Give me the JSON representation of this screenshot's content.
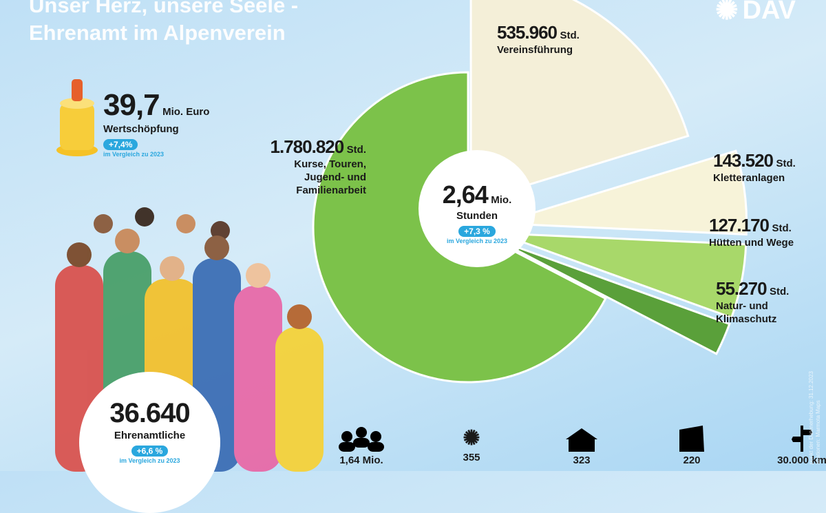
{
  "header": {
    "title_line1": "Unser Herz, unsere Seele -",
    "title_line2": "Ehrenamt im Alpenverein",
    "logo": "DAV"
  },
  "value_creation": {
    "value": "39,7",
    "unit": "Mio. Euro",
    "label": "Wertschöpfung",
    "change": "+7,4%",
    "compare": "im Vergleich zu 2023"
  },
  "volunteers": {
    "value": "36.640",
    "label": "Ehrenamtliche",
    "change": "+6,6 %",
    "compare": "im Vergleich zu 2023"
  },
  "total_hours": {
    "value": "2,64",
    "unit": "Mio.",
    "label": "Stunden",
    "change": "+7,3 %",
    "compare": "im Vergleich zu 2023"
  },
  "chart_data": {
    "type": "pie",
    "slices": [
      {
        "value": 535960,
        "value_label": "535.960",
        "unit": "Std.",
        "label": "Vereinsführung",
        "color": "#f4efd8"
      },
      {
        "value": 143520,
        "value_label": "143.520",
        "unit": "Std.",
        "label": "Kletteranlagen",
        "color": "#f7f3d9"
      },
      {
        "value": 127170,
        "value_label": "127.170",
        "unit": "Std.",
        "label": "Hütten und Wege",
        "color": "#a8d86a"
      },
      {
        "value": 55270,
        "value_label": "55.270",
        "unit": "Std.",
        "label": "Natur- und Klimaschutz",
        "color": "#5aa03a"
      },
      {
        "value": 1780820,
        "value_label": "1.780.820",
        "unit": "Std.",
        "label": "Kurse, Touren, Jugend- und Familienarbeit",
        "color": "#7cc24a"
      }
    ]
  },
  "bottom_stats": [
    {
      "icon": "people-icon",
      "value": "1,64 Mio."
    },
    {
      "icon": "edelweiss-icon",
      "value": "355"
    },
    {
      "icon": "hut-icon",
      "value": "323"
    },
    {
      "icon": "climbing-center-icon",
      "value": "220"
    },
    {
      "icon": "signpost-icon",
      "value": "30.000 km"
    }
  ],
  "footnote": {
    "line1": "punkt der Datenerhebung: 31.12.2023",
    "line2": "strationen: Marmota Maps"
  }
}
